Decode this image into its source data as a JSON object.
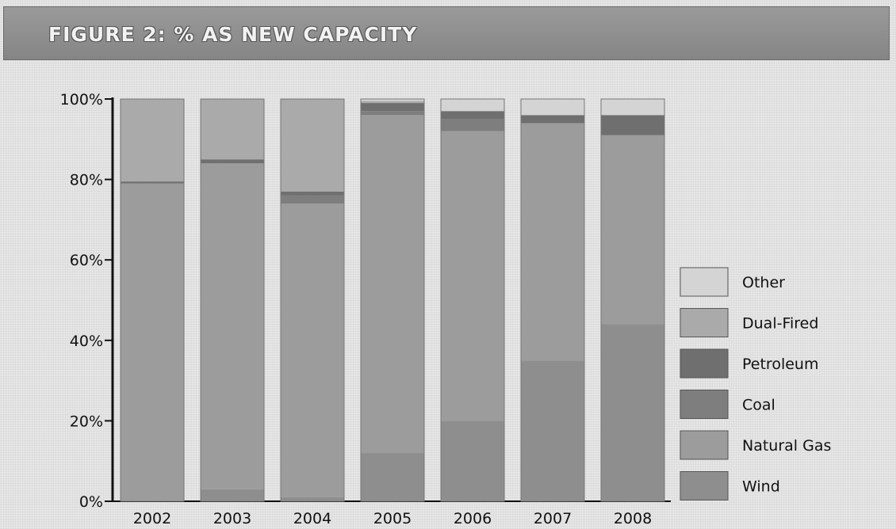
{
  "header": {
    "title": "FIGURE 2: % AS NEW CAPACITY"
  },
  "chart_data": {
    "type": "bar",
    "stacked": true,
    "categories": [
      "2002",
      "2003",
      "2004",
      "2005",
      "2006",
      "2007",
      "2008"
    ],
    "yticks": [
      "0%",
      "20%",
      "40%",
      "60%",
      "80%",
      "100%"
    ],
    "ylim": [
      0,
      100
    ],
    "legend_position": "right",
    "series": [
      {
        "name": "Wind",
        "color": "#8e8e8e",
        "values": [
          0,
          3,
          1,
          12,
          20,
          35,
          44
        ]
      },
      {
        "name": "Natural Gas",
        "color": "#9c9c9c",
        "values": [
          79,
          81,
          73,
          84,
          72,
          59,
          47
        ]
      },
      {
        "name": "Coal",
        "color": "#7e7e7e",
        "values": [
          0,
          0,
          2,
          1,
          3,
          0,
          0
        ]
      },
      {
        "name": "Petroleum",
        "color": "#6f6f6f",
        "values": [
          0.5,
          1,
          1,
          2,
          2,
          2,
          5
        ]
      },
      {
        "name": "Dual-Fired",
        "color": "#aaaaaa",
        "values": [
          20.5,
          15,
          23,
          0.5,
          0,
          0,
          0
        ]
      },
      {
        "name": "Other",
        "color": "#d4d4d4",
        "values": [
          0,
          0,
          0,
          0.5,
          3,
          4,
          4
        ]
      }
    ]
  }
}
